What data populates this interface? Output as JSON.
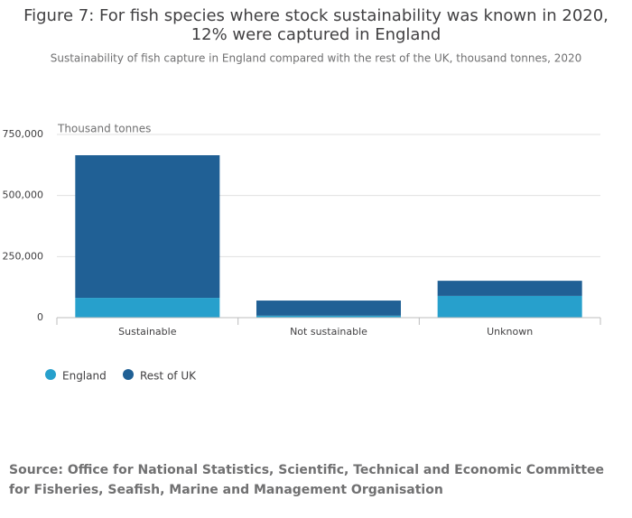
{
  "chart_data": {
    "type": "bar",
    "title": [
      "Figure 7: For fish species where stock sustainability was known in 2020,",
      "12% were captured in England"
    ],
    "subtitle": "Sustainability of fish capture in England compared with the rest of the UK, thousand tonnes, 2020",
    "y_label": "Thousand tonnes",
    "stacked": true,
    "categories": [
      "Sustainable",
      "Not sustainable",
      "Unknown"
    ],
    "series": [
      {
        "name": "England",
        "color": "#27a0cc",
        "values": [
          81000,
          8000,
          89000
        ]
      },
      {
        "name": "Rest of UK",
        "color": "#206095",
        "values": [
          584000,
          62000,
          62000
        ]
      }
    ],
    "ylim": [
      0,
      750000
    ],
    "yticks": [
      0,
      {
        "value": 250000,
        "label": "250,000"
      },
      {
        "value": 500000,
        "label": "500,000"
      },
      {
        "value": 750000,
        "label": "750,000"
      }
    ],
    "grid": true,
    "source": "Source: Office for National Statistics, Scientific, Technical and Economic Committee for Fisheries, Seafish, Marine and Management Organisation"
  }
}
